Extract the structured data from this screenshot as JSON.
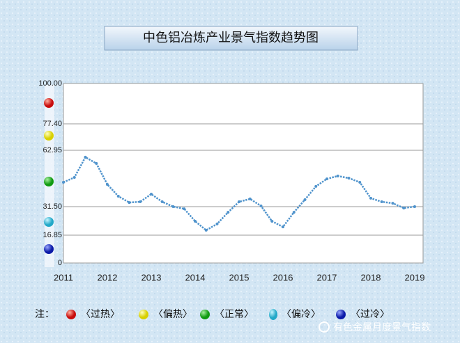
{
  "chart_data": {
    "type": "line",
    "title": "中色铝冶炼产业景气指数趋势图",
    "categories": [
      "2011",
      null,
      null,
      null,
      "2012",
      null,
      null,
      null,
      "2013",
      null,
      null,
      null,
      "2014",
      null,
      null,
      null,
      "2015",
      null,
      null,
      null,
      "2016",
      null,
      null,
      null,
      "2017",
      null,
      null,
      null,
      "2018",
      null,
      null,
      null,
      "2019"
    ],
    "values": [
      45.1,
      47.8,
      59.1,
      55.6,
      43.9,
      37.3,
      33.8,
      34.2,
      38.5,
      34.2,
      31.5,
      30.4,
      24.0,
      19.4,
      22.6,
      28.6,
      34.2,
      35.8,
      31.9,
      24.0,
      21.1,
      28.6,
      35.4,
      42.8,
      47.0,
      48.6,
      47.4,
      45.1,
      36.2,
      34.2,
      33.4,
      30.8,
      31.5
    ],
    "color": "#4f93cc",
    "ylim": [
      0,
      100
    ],
    "yticks": [
      0,
      16.85,
      {
        "value": 31.5,
        "label": "31.50"
      },
      62.95,
      {
        "value": 77.4,
        "label": "77.40"
      },
      {
        "value": 100,
        "label": "100.00"
      }
    ],
    "grid": true
  },
  "legend_note": {
    "label": "注：",
    "items": [
      "〈过热〉",
      "〈偏热〉",
      "〈正常〉",
      "〈偏冷〉",
      "〈过冷〉"
    ]
  },
  "watermark": "有色金属月度景气指数"
}
